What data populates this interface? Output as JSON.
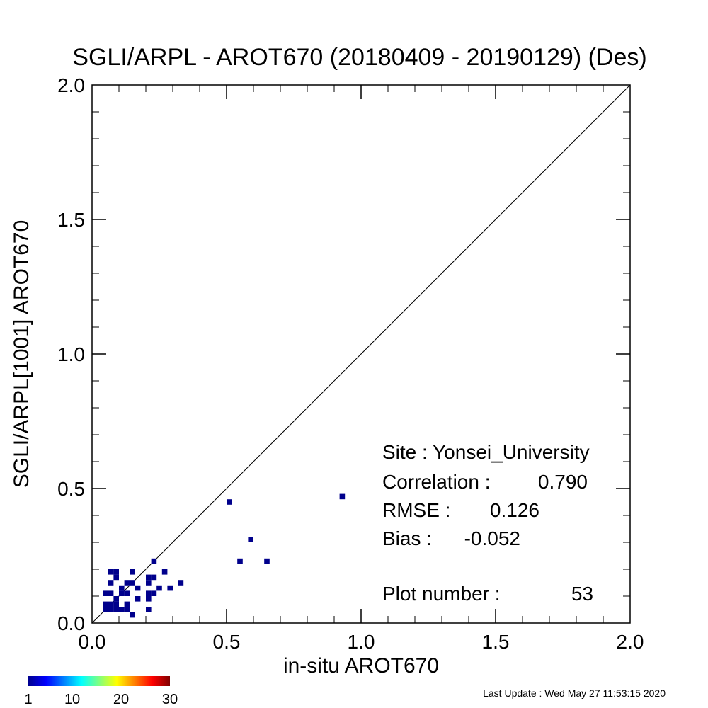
{
  "chart_data": {
    "type": "scatter",
    "title": "SGLI/ARPL - AROT670 (20180409 - 20190129) (Des)",
    "xlabel": "in-situ AROT670",
    "ylabel": "SGLI/ARPL[1001]    AROT670",
    "xlim": [
      0.0,
      2.0
    ],
    "ylim": [
      0.0,
      2.0
    ],
    "x_ticks": [
      "0.0",
      "0.5",
      "1.0",
      "1.5",
      "2.0"
    ],
    "y_ticks": [
      "0.0",
      "0.5",
      "1.0",
      "1.5",
      "2.0"
    ],
    "reference_line": "1:1",
    "cell_size": 0.02,
    "points": [
      {
        "x": 0.05,
        "y": 0.11
      },
      {
        "x": 0.07,
        "y": 0.11
      },
      {
        "x": 0.05,
        "y": 0.07
      },
      {
        "x": 0.07,
        "y": 0.07
      },
      {
        "x": 0.05,
        "y": 0.05
      },
      {
        "x": 0.07,
        "y": 0.05
      },
      {
        "x": 0.09,
        "y": 0.05
      },
      {
        "x": 0.09,
        "y": 0.07
      },
      {
        "x": 0.09,
        "y": 0.09
      },
      {
        "x": 0.07,
        "y": 0.15
      },
      {
        "x": 0.07,
        "y": 0.19
      },
      {
        "x": 0.09,
        "y": 0.19
      },
      {
        "x": 0.09,
        "y": 0.17
      },
      {
        "x": 0.11,
        "y": 0.13
      },
      {
        "x": 0.11,
        "y": 0.11
      },
      {
        "x": 0.11,
        "y": 0.05
      },
      {
        "x": 0.13,
        "y": 0.15
      },
      {
        "x": 0.13,
        "y": 0.11
      },
      {
        "x": 0.13,
        "y": 0.07
      },
      {
        "x": 0.13,
        "y": 0.05
      },
      {
        "x": 0.15,
        "y": 0.19
      },
      {
        "x": 0.15,
        "y": 0.15
      },
      {
        "x": 0.15,
        "y": 0.03
      },
      {
        "x": 0.17,
        "y": 0.13
      },
      {
        "x": 0.17,
        "y": 0.09
      },
      {
        "x": 0.21,
        "y": 0.17
      },
      {
        "x": 0.21,
        "y": 0.15
      },
      {
        "x": 0.21,
        "y": 0.11
      },
      {
        "x": 0.21,
        "y": 0.09
      },
      {
        "x": 0.21,
        "y": 0.05
      },
      {
        "x": 0.23,
        "y": 0.23
      },
      {
        "x": 0.23,
        "y": 0.17
      },
      {
        "x": 0.23,
        "y": 0.11
      },
      {
        "x": 0.25,
        "y": 0.13
      },
      {
        "x": 0.27,
        "y": 0.19
      },
      {
        "x": 0.29,
        "y": 0.13
      },
      {
        "x": 0.33,
        "y": 0.15
      },
      {
        "x": 0.51,
        "y": 0.45
      },
      {
        "x": 0.55,
        "y": 0.23
      },
      {
        "x": 0.59,
        "y": 0.31
      },
      {
        "x": 0.65,
        "y": 0.23
      },
      {
        "x": 0.93,
        "y": 0.47
      }
    ],
    "colorbar": {
      "colormap": "jet",
      "min": 1,
      "max": 30,
      "ticks": [
        "1",
        "10",
        "20",
        "30"
      ],
      "point_color": "#00008c"
    }
  },
  "stats": {
    "site": "Site : Yonsei_University",
    "correlation_label": "Correlation :",
    "correlation_value": "0.790",
    "rmse_label": "RMSE :",
    "rmse_value": "0.126",
    "bias_label": "Bias :",
    "bias_value": "-0.052",
    "plot_number_label": "Plot number :",
    "plot_number_value": "53"
  },
  "footer": {
    "last_update": "Last Update : Wed May 27 11:53:15 2020"
  }
}
